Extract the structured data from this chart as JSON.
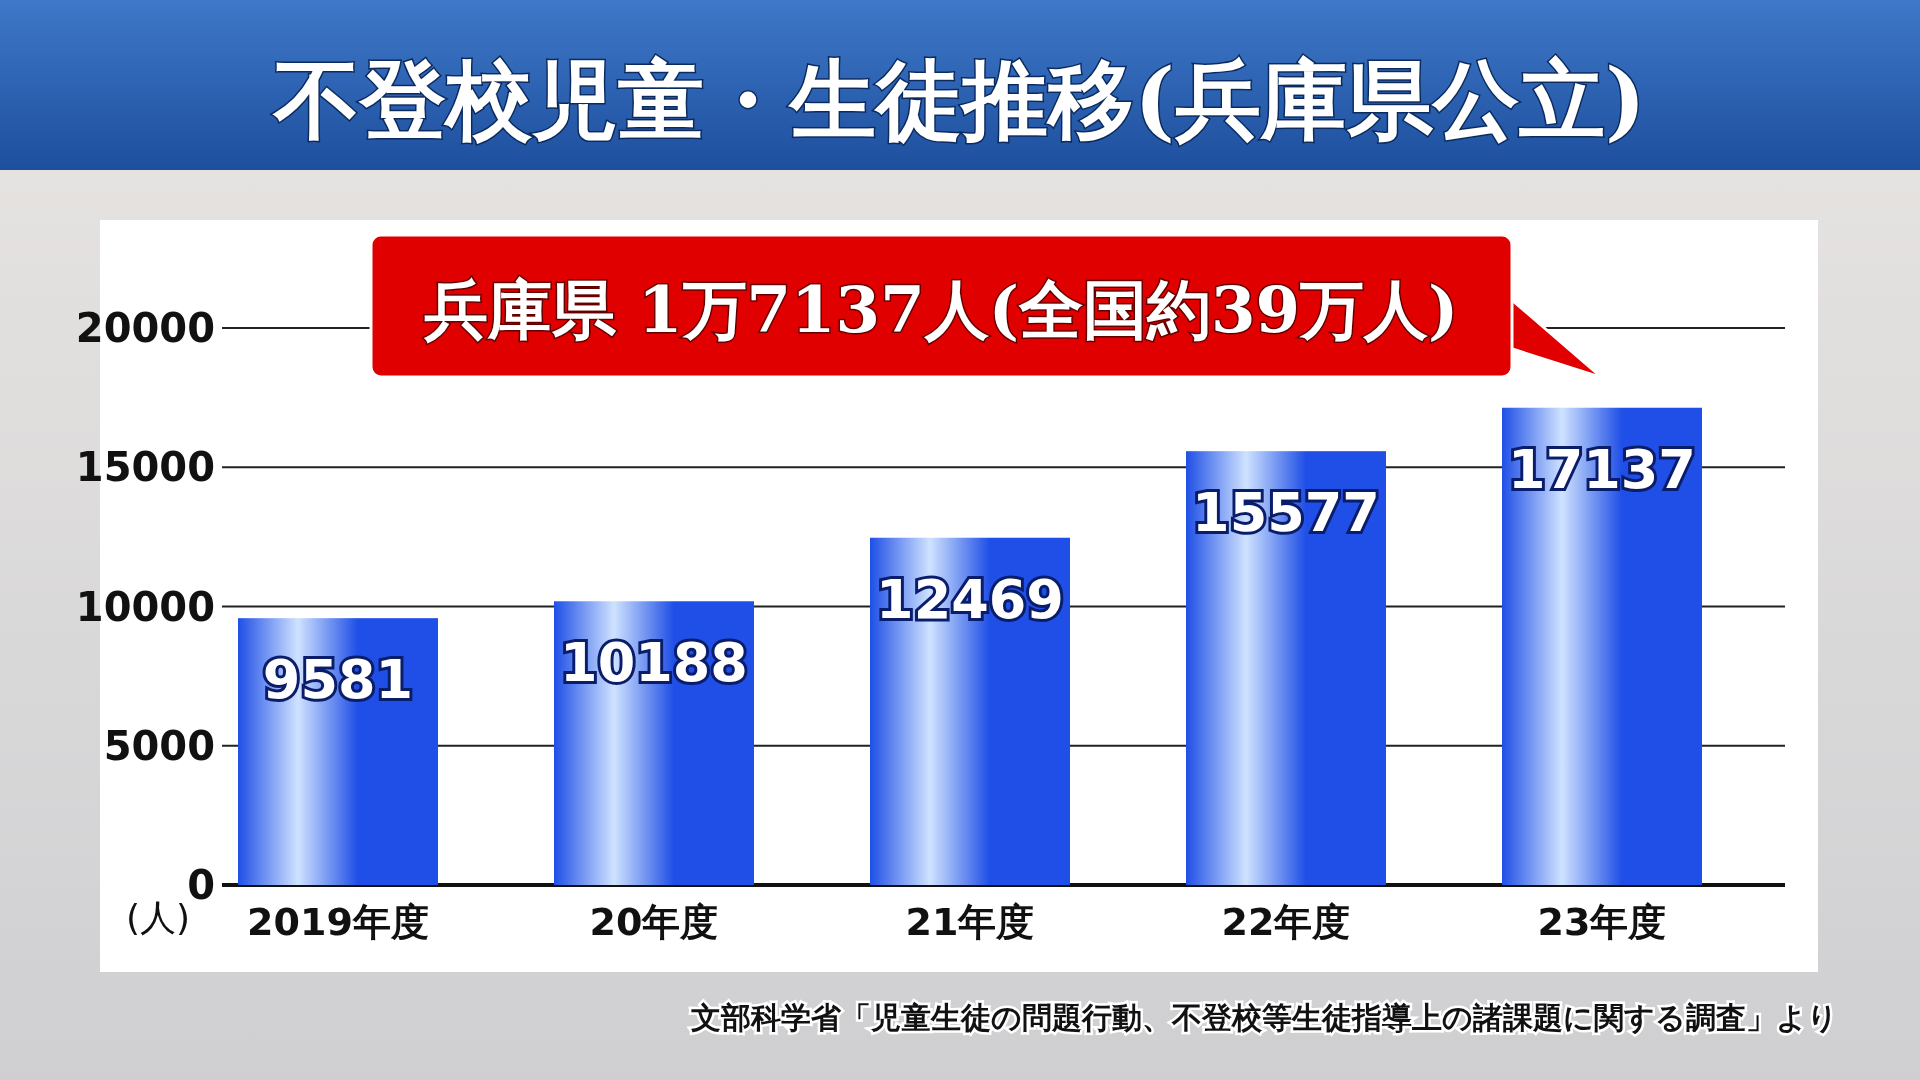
{
  "chart_data": {
    "type": "bar",
    "title": "不登校児童・生徒推移(兵庫県公立)",
    "ylabel": "(人)",
    "categories": [
      "2019年度",
      "20年度",
      "21年度",
      "22年度",
      "23年度"
    ],
    "values": [
      9581,
      10188,
      12469,
      15577,
      17137
    ],
    "color": "#1f4fe6",
    "ylim": [
      0,
      20000
    ],
    "yticks": [
      0,
      5000,
      10000,
      15000,
      20000
    ],
    "grid": "y",
    "data_labels": true,
    "annotations": [
      {
        "text": "兵庫県 1万7137人(全国約39万人)",
        "x": "23年度",
        "y": 17137
      },
      "文部科学省「児童生徒の問題行動、不登校等生徒指導上の諸課題に関する調査」より"
    ]
  }
}
